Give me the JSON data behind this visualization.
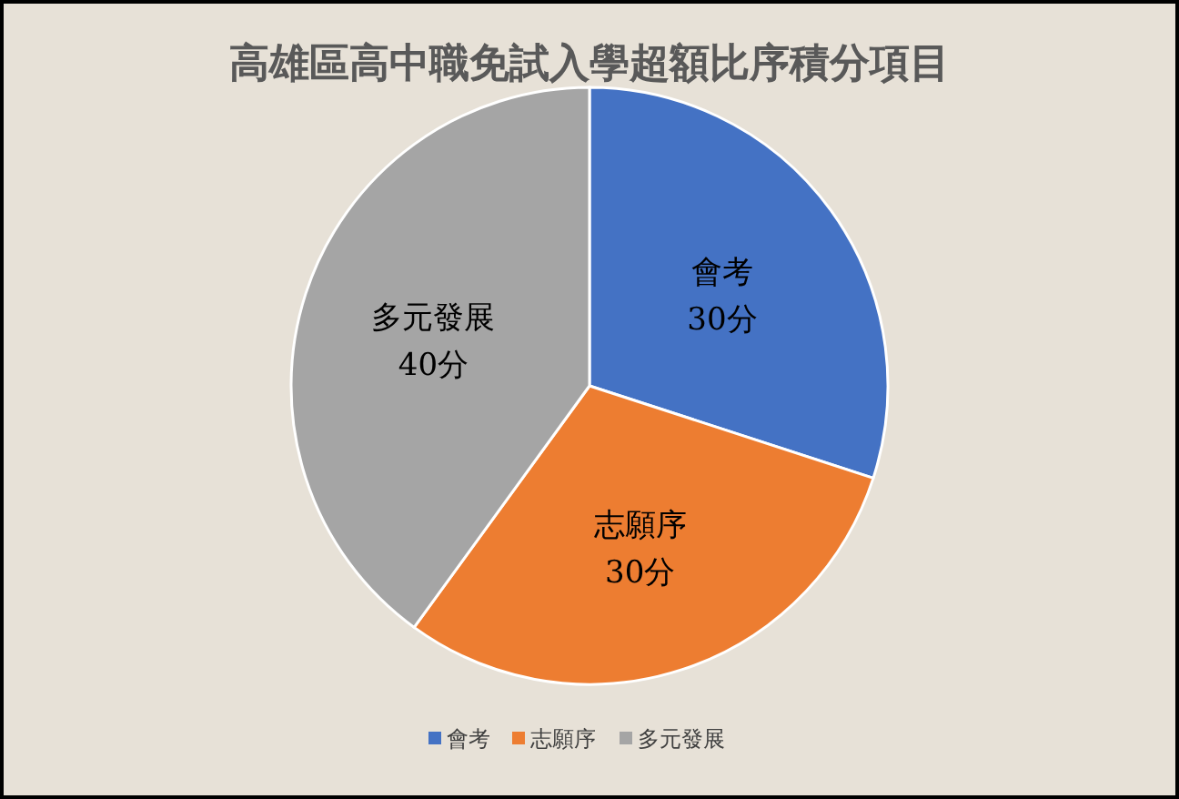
{
  "chart_data": {
    "type": "pie",
    "title": "高雄區高中職免試入學超額比序積分項目",
    "categories": [
      "會考",
      "志願序",
      "多元發展"
    ],
    "values": [
      30,
      30,
      40
    ],
    "value_labels": [
      "30分",
      "30分",
      "40分"
    ],
    "colors": [
      "#4472c4",
      "#ed7d31",
      "#a5a5a5"
    ],
    "legend": "bottom"
  }
}
